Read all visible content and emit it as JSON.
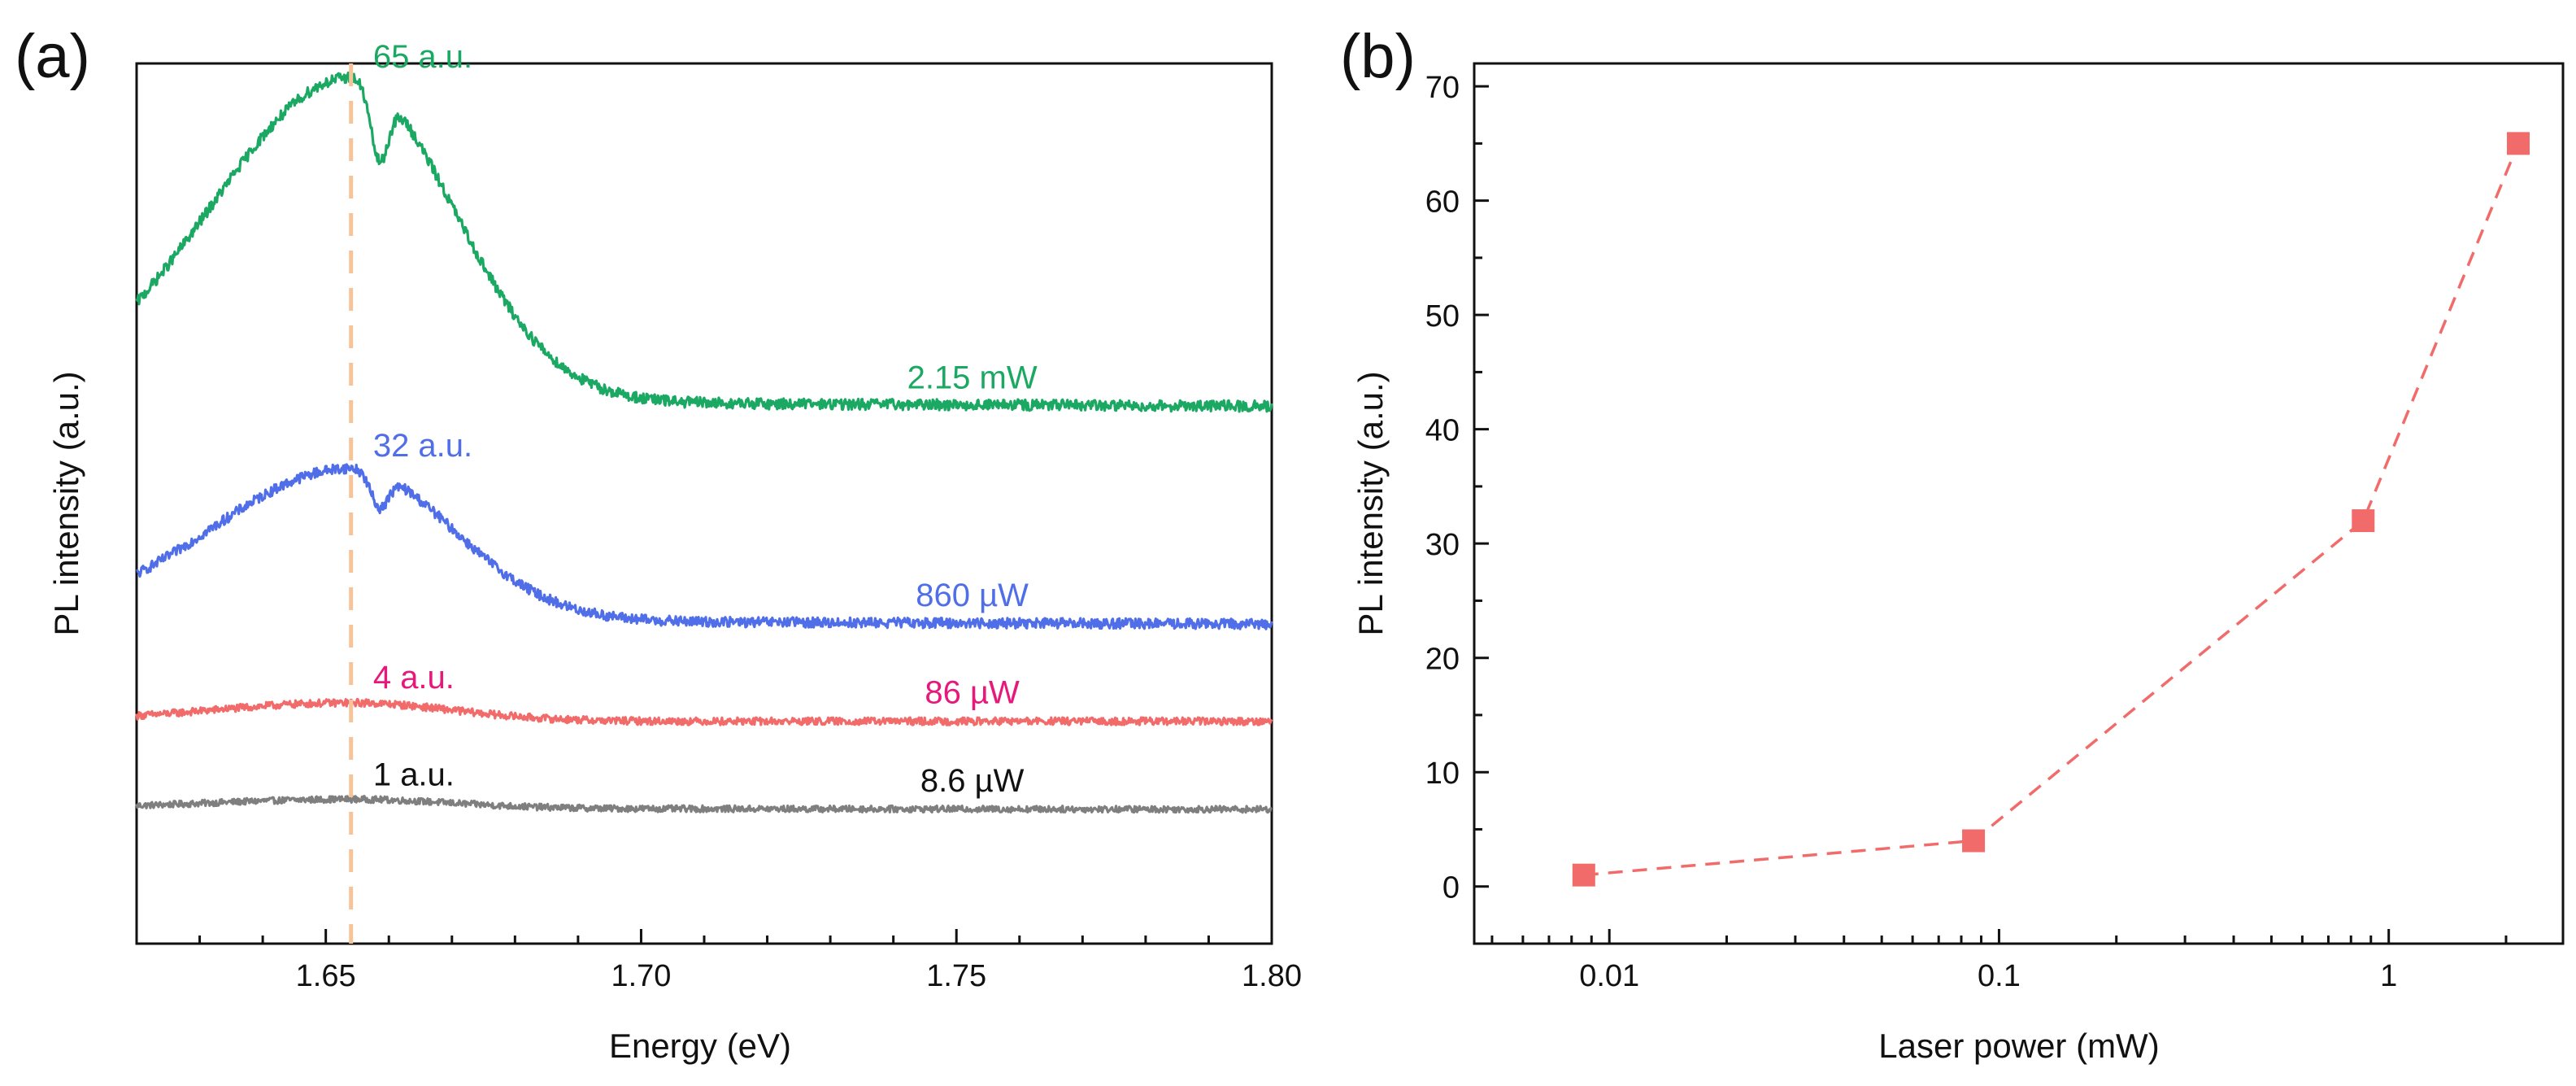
{
  "chart_data": [
    {
      "panel_label": "(a)",
      "type": "line",
      "title": "",
      "xlabel": "Energy (eV)",
      "ylabel": "PL intensity (a.u.)",
      "xlim": [
        1.62,
        1.8
      ],
      "ylim": [
        -1,
        94
      ],
      "x_ticks": [
        1.65,
        1.7,
        1.75,
        1.8
      ],
      "x_tick_labels": [
        "1.65",
        "1.70",
        "1.75",
        "1.80"
      ],
      "y_ticks_shown": false,
      "reference_line": {
        "x": 1.654,
        "style": "dashed",
        "color": "#f7c49a"
      },
      "series": [
        {
          "name": "8.6 µW",
          "power_label": "8.6 µW",
          "peak_label": "1 a.u.",
          "color": "#7f7f7f",
          "power_label_color": "#111111",
          "peak_label_color": "#111111",
          "offset": 13.5,
          "peak": 1,
          "background": 0.1,
          "dip": false,
          "noise": 0.35,
          "x": [
            1.62,
            1.64,
            1.654,
            1.66,
            1.68,
            1.7,
            1.75,
            1.8
          ],
          "values": [
            13.5,
            13.6,
            14.0,
            13.7,
            13.6,
            13.5,
            13.5,
            13.5
          ]
        },
        {
          "name": "86 µW",
          "power_label": "86 µW",
          "peak_label": "4 a.u.",
          "color": "#f26b6b",
          "power_label_color": "#e6197a",
          "peak_label_color": "#e6197a",
          "offset": 23.0,
          "peak": 2.0,
          "background": 0.0,
          "dip": false,
          "noise": 0.4,
          "x": [
            1.62,
            1.64,
            1.654,
            1.66,
            1.68,
            1.7,
            1.75,
            1.8
          ],
          "values": [
            23.2,
            23.8,
            24.9,
            24.4,
            23.6,
            23.2,
            23.0,
            23.0
          ]
        },
        {
          "name": "860 µW",
          "power_label": "860 µW",
          "peak_label": "32 a.u.",
          "color": "#4f6ee8",
          "power_label_color": "#4f6ee8",
          "peak_label_color": "#4f6ee8",
          "offset": 33.5,
          "peak": 16.5,
          "background": 0.4,
          "dip": true,
          "noise": 0.55,
          "x": [
            1.62,
            1.64,
            1.654,
            1.658,
            1.662,
            1.68,
            1.7,
            1.75,
            1.8
          ],
          "values": [
            38.2,
            44.0,
            49.8,
            45.8,
            48.0,
            40.5,
            34.6,
            33.8,
            33.8
          ]
        },
        {
          "name": "2.15 mW",
          "power_label": "2.15 mW",
          "peak_label": "65 a.u.",
          "color": "#1aa863",
          "power_label_color": "#1aa863",
          "peak_label_color": "#1aa863",
          "offset": 57.0,
          "peak": 35.0,
          "background": 0.6,
          "dip": true,
          "noise": 0.6,
          "x": [
            1.62,
            1.64,
            1.654,
            1.658,
            1.662,
            1.68,
            1.7,
            1.75,
            1.8
          ],
          "values": [
            67.0,
            80.0,
            92.0,
            84.0,
            89.0,
            72.0,
            58.5,
            57.5,
            57.5
          ]
        }
      ]
    },
    {
      "panel_label": "(b)",
      "type": "line",
      "title": "",
      "xlabel": "Laser power (mW)",
      "ylabel": "PL intensity (a.u.)",
      "x_scale": "log",
      "xlim": [
        0.0045,
        2.8
      ],
      "ylim": [
        -5,
        72
      ],
      "x_ticks": [
        0.01,
        0.1,
        1
      ],
      "x_tick_labels": [
        "0.01",
        "0.1",
        "1"
      ],
      "y_ticks": [
        0,
        10,
        20,
        30,
        40,
        50,
        60,
        70
      ],
      "y_tick_labels": [
        "0",
        "10",
        "20",
        "30",
        "40",
        "50",
        "60",
        "70"
      ],
      "series": [
        {
          "name": "PL intensity",
          "color": "#f26b6b",
          "marker": "square",
          "line_style": "dashed",
          "x": [
            0.0086,
            0.086,
            0.86,
            2.15
          ],
          "values": [
            1,
            4,
            32,
            65
          ]
        }
      ]
    }
  ]
}
